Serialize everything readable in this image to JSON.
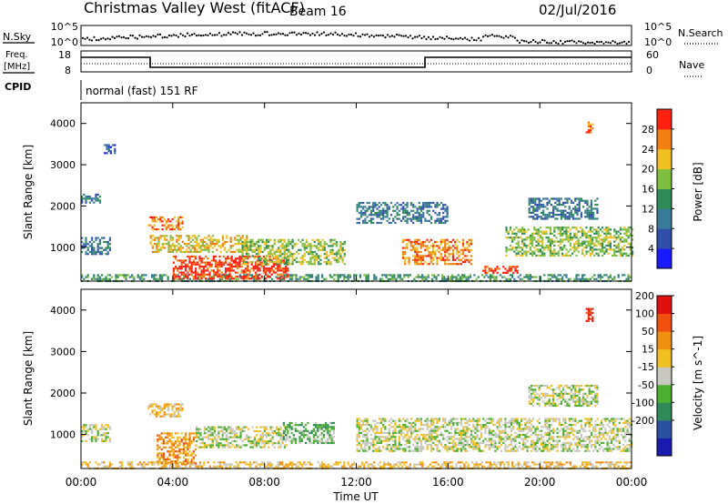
{
  "header": {
    "title": "Christmas Valley West (fitACF)",
    "beam": "Beam 16",
    "date": "02/Jul/2016"
  },
  "top_panels": {
    "nsky_label": "N.Sky",
    "nsearch_label": "N.Search",
    "nsky_ticks": [
      "10^5",
      "10^0"
    ],
    "nsearch_ticks": [
      "10^5",
      "10^0"
    ],
    "freq_label_1": "Freq.",
    "freq_label_2": "[MHz]",
    "freq_ticks": [
      "18",
      "8"
    ],
    "nave_label": "Nave",
    "nave_ticks": [
      "60",
      "0"
    ],
    "cpid_label": "CPID",
    "cpid_text": "normal (fast) 151 RF"
  },
  "chart_data": [
    {
      "type": "heatmap",
      "name": "power",
      "ylabel": "Slant Range [km]",
      "y_ticks": [
        1000,
        2000,
        3000,
        4000
      ],
      "ylim": [
        180,
        4500
      ],
      "x_hours": [
        0,
        24
      ],
      "colorbar_label": "Power [dB]",
      "colorbar_ticks": [
        "28",
        "24",
        "20",
        "16",
        "12",
        "8",
        "4"
      ],
      "colorbar_colors": [
        "#1a1aff",
        "#2f4fa8",
        "#3a7a9a",
        "#2e8b57",
        "#7fbf3f",
        "#f0c020",
        "#f08010",
        "#ff2010"
      ],
      "echo_regions": [
        {
          "t0": 0.0,
          "t1": 24.0,
          "r0": 180,
          "r1": 350,
          "level": 3
        },
        {
          "t0": 2.9,
          "t1": 4.4,
          "r0": 1450,
          "r1": 1750,
          "level": 6
        },
        {
          "t0": 3.0,
          "t1": 7.2,
          "r0": 900,
          "r1": 1300,
          "level": 5
        },
        {
          "t0": 4.0,
          "t1": 9.0,
          "r0": 250,
          "r1": 800,
          "level": 7
        },
        {
          "t0": 7.0,
          "t1": 11.5,
          "r0": 600,
          "r1": 1200,
          "level": 4
        },
        {
          "t0": 14.0,
          "t1": 17.0,
          "r0": 600,
          "r1": 1200,
          "level": 6
        },
        {
          "t0": 17.5,
          "t1": 19.0,
          "r0": 400,
          "r1": 550,
          "level": 7
        },
        {
          "t0": 0.0,
          "t1": 1.3,
          "r0": 850,
          "r1": 1250,
          "level": 2
        },
        {
          "t0": 18.5,
          "t1": 24.0,
          "r0": 800,
          "r1": 1500,
          "level": 4
        },
        {
          "t0": 12.0,
          "t1": 16.0,
          "r0": 1600,
          "r1": 2100,
          "level": 2
        },
        {
          "t0": 19.5,
          "t1": 22.5,
          "r0": 1700,
          "r1": 2200,
          "level": 2
        },
        {
          "t0": 0.0,
          "t1": 0.8,
          "r0": 2100,
          "r1": 2300,
          "level": 2
        },
        {
          "t0": 1.0,
          "t1": 1.5,
          "r0": 3300,
          "r1": 3500,
          "level": 1
        },
        {
          "t0": 22.0,
          "t1": 22.3,
          "r0": 3750,
          "r1": 4050,
          "level": 6
        }
      ]
    },
    {
      "type": "heatmap",
      "name": "velocity",
      "ylabel": "Slant Range [km]",
      "y_ticks": [
        1000,
        2000,
        3000,
        4000
      ],
      "ylim": [
        180,
        4500
      ],
      "x_hours": [
        0,
        24
      ],
      "x_ticks": [
        "00:00",
        "04:00",
        "08:00",
        "12:00",
        "16:00",
        "20:00",
        "00:00"
      ],
      "xlabel": "Time UT",
      "colorbar_label": "Velocity [m s^-1]",
      "colorbar_ticks": [
        "200",
        "100",
        "50",
        "15",
        "-15",
        "-50",
        "-100",
        "-200"
      ],
      "colorbar_colors": [
        "#1a1ab0",
        "#2a50a0",
        "#2e8b57",
        "#4caf2f",
        "#c8c8c0",
        "#f0c020",
        "#f09010",
        "#f05010",
        "#e01010"
      ],
      "echo_regions": [
        {
          "t0": 0.0,
          "t1": 24.0,
          "r0": 180,
          "r1": 350,
          "level": 5
        },
        {
          "t0": 2.9,
          "t1": 4.4,
          "r0": 1450,
          "r1": 1750,
          "level": 5
        },
        {
          "t0": 3.3,
          "t1": 5.0,
          "r0": 300,
          "r1": 1050,
          "level": 6
        },
        {
          "t0": 5.0,
          "t1": 9.0,
          "r0": 700,
          "r1": 1200,
          "level": 4
        },
        {
          "t0": 8.8,
          "t1": 11.0,
          "r0": 800,
          "r1": 1300,
          "level": 3
        },
        {
          "t0": 12.0,
          "t1": 24.0,
          "r0": 600,
          "r1": 1400,
          "level": 4
        },
        {
          "t0": 0.0,
          "t1": 1.3,
          "r0": 850,
          "r1": 1250,
          "level": 4
        },
        {
          "t0": 19.5,
          "t1": 22.5,
          "r0": 1700,
          "r1": 2200,
          "level": 4
        },
        {
          "t0": 22.0,
          "t1": 22.3,
          "r0": 3750,
          "r1": 4050,
          "level": 8
        }
      ]
    }
  ]
}
